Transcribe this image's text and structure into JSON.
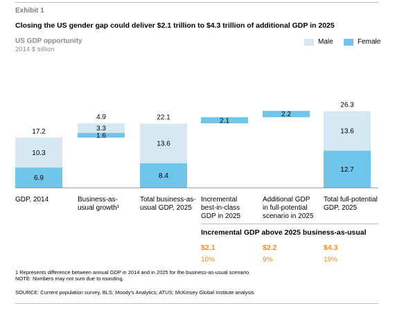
{
  "exhibit": "Exhibit 1",
  "title": "Closing the US gender gap could deliver $2.1 trillion to $4.3 trillion of additional GDP in 2025",
  "subtitle": "US GDP opportunity",
  "unit": "2014 $ trillion",
  "colors": {
    "male": "#d5e8f4",
    "female": "#6fc6ea",
    "accent": "#ef8a1a",
    "rule": "#bdbdbd"
  },
  "legend": {
    "male": "Male",
    "female": "Female"
  },
  "chart_data": {
    "type": "bar",
    "subtype": "waterfall",
    "categories": [
      "GDP, 2014",
      "Business-as-usual growth",
      "Total business-as-usual GDP, 2025",
      "Incremental best-in-class GDP in 2025",
      "Additional GDP in full-potential scenario in 2025",
      "Total full-potential GDP, 2025"
    ],
    "category_labels": [
      [
        "GDP, 2014"
      ],
      [
        "Business-as-",
        "usual growth¹"
      ],
      [
        "Total business-as-",
        "usual GDP, 2025"
      ],
      [
        "Incremental",
        "best-in-class",
        "GDP in 2025"
      ],
      [
        "Additional GDP",
        "in full-potential",
        "scenario in 2025"
      ],
      [
        "Total full-potential",
        "GDP, 2025"
      ]
    ],
    "series": [
      {
        "name": "Female",
        "values": [
          6.9,
          1.6,
          8.4,
          2.1,
          2.2,
          12.7
        ]
      },
      {
        "name": "Male",
        "values": [
          10.3,
          3.3,
          13.6,
          null,
          null,
          13.6
        ]
      }
    ],
    "bases": [
      0,
      17.2,
      0,
      22.1,
      24.2,
      0
    ],
    "totals": [
      17.2,
      4.9,
      22.1,
      null,
      null,
      26.3
    ],
    "value_labels": {
      "female": [
        "6.9",
        "1.6",
        "8.4",
        "2.1",
        "2.2",
        "12.7"
      ],
      "male": [
        "10.3",
        "3.3",
        "13.6",
        "",
        "",
        "13.6"
      ],
      "totals": [
        "17.2",
        "4.9",
        "22.1",
        "",
        "",
        "26.3"
      ]
    },
    "ylim": [
      0,
      26.5
    ],
    "grid": false,
    "legend_position": "top-right"
  },
  "incremental": {
    "heading": "Incremental GDP above 2025 business-as-usual",
    "values": [
      "$2.1",
      "$2.2",
      "$4.3"
    ],
    "percents": [
      "10%",
      "9%",
      "19%"
    ]
  },
  "footnotes": [
    "1  Represents difference between annual GDP in 2014 and in 2025 for the business-as-usual scenario.",
    "NOTE: Numbers may not sum due to rounding."
  ],
  "source": "SOURCE:  Current population survey, BLS; Moody's Analytics; ATUS; McKinsey Global Institute analysis"
}
